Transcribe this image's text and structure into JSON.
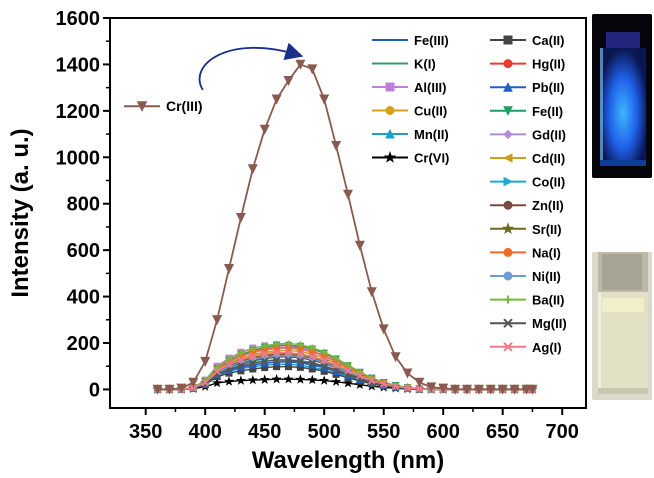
{
  "chart_data": {
    "type": "line",
    "title": "",
    "xlabel": "Wavelength (nm)",
    "ylabel": "Intensity (a. u.)",
    "xlim": [
      320,
      720
    ],
    "ylim": [
      -80,
      1600
    ],
    "xticks": [
      350,
      400,
      450,
      500,
      550,
      600,
      650,
      700
    ],
    "yticks": [
      0,
      200,
      400,
      600,
      800,
      1000,
      1200,
      1400,
      1600
    ],
    "x": [
      360,
      370,
      380,
      390,
      400,
      410,
      420,
      430,
      440,
      450,
      460,
      470,
      480,
      490,
      500,
      510,
      520,
      530,
      540,
      550,
      560,
      570,
      580,
      590,
      600,
      610,
      620,
      630,
      640,
      650,
      660,
      670,
      675
    ],
    "series": [
      {
        "name": "Cr(III)",
        "color": "#8b5a4e",
        "marker": "triangle-down",
        "values": [
          0,
          0,
          5,
          30,
          120,
          300,
          520,
          740,
          950,
          1120,
          1250,
          1330,
          1400,
          1380,
          1250,
          1050,
          840,
          620,
          420,
          260,
          140,
          70,
          30,
          10,
          5,
          0,
          0,
          0,
          0,
          0,
          0,
          0,
          0
        ]
      },
      {
        "name": "Fe(III)",
        "color": "#1f5fa8",
        "marker": "none",
        "values": [
          0,
          0,
          0,
          5,
          20,
          60,
          80,
          95,
          105,
          112,
          118,
          120,
          118,
          110,
          98,
          82,
          64,
          46,
          30,
          18,
          10,
          5,
          2,
          0,
          0,
          0,
          0,
          0,
          0,
          0,
          0,
          0,
          0
        ]
      },
      {
        "name": "K(I)",
        "color": "#2e9c6e",
        "marker": "none",
        "values": [
          0,
          0,
          0,
          5,
          25,
          70,
          95,
          110,
          122,
          132,
          140,
          143,
          140,
          132,
          118,
          98,
          76,
          55,
          36,
          22,
          12,
          6,
          2,
          0,
          0,
          0,
          0,
          0,
          0,
          0,
          0,
          0,
          0
        ]
      },
      {
        "name": "Al(III)",
        "color": "#c07fd6",
        "marker": "square",
        "values": [
          0,
          0,
          0,
          8,
          40,
          100,
          135,
          160,
          178,
          188,
          192,
          190,
          180,
          165,
          145,
          120,
          92,
          66,
          44,
          27,
          15,
          7,
          3,
          0,
          0,
          0,
          0,
          0,
          0,
          0,
          0,
          0,
          0
        ]
      },
      {
        "name": "Cu(II)",
        "color": "#d4a017",
        "marker": "circle",
        "values": [
          0,
          0,
          0,
          6,
          30,
          80,
          110,
          130,
          145,
          155,
          160,
          158,
          152,
          140,
          124,
          102,
          79,
          57,
          38,
          23,
          13,
          6,
          2,
          0,
          0,
          0,
          0,
          0,
          0,
          0,
          0,
          0,
          0
        ]
      },
      {
        "name": "Mn(II)",
        "color": "#1aa0c8",
        "marker": "triangle-up",
        "values": [
          0,
          0,
          0,
          5,
          22,
          60,
          78,
          90,
          98,
          104,
          108,
          108,
          104,
          96,
          84,
          70,
          54,
          39,
          26,
          16,
          9,
          4,
          1,
          0,
          0,
          0,
          0,
          0,
          0,
          0,
          0,
          0,
          0
        ]
      },
      {
        "name": "Cr(VI)",
        "color": "#000000",
        "marker": "star",
        "values": [
          0,
          0,
          0,
          3,
          12,
          28,
          34,
          38,
          40,
          42,
          44,
          44,
          43,
          41,
          38,
          33,
          27,
          20,
          14,
          9,
          5,
          2,
          1,
          0,
          0,
          0,
          0,
          0,
          0,
          0,
          0,
          0,
          0
        ]
      },
      {
        "name": "Ca(II)",
        "color": "#444444",
        "marker": "square",
        "values": [
          0,
          0,
          0,
          4,
          20,
          55,
          70,
          80,
          88,
          94,
          98,
          98,
          95,
          88,
          78,
          65,
          50,
          36,
          24,
          15,
          8,
          4,
          1,
          0,
          0,
          0,
          0,
          0,
          0,
          0,
          0,
          0,
          0
        ]
      },
      {
        "name": "Hg(II)",
        "color": "#e83c2e",
        "marker": "circle",
        "values": [
          0,
          0,
          0,
          6,
          28,
          75,
          105,
          124,
          138,
          148,
          153,
          152,
          146,
          135,
          119,
          98,
          76,
          55,
          36,
          22,
          12,
          6,
          2,
          0,
          0,
          0,
          0,
          0,
          0,
          0,
          0,
          0,
          0
        ]
      },
      {
        "name": "Pb(II)",
        "color": "#1e5fc8",
        "marker": "triangle-up",
        "values": [
          0,
          0,
          0,
          5,
          22,
          62,
          82,
          96,
          106,
          113,
          118,
          118,
          114,
          105,
          93,
          77,
          60,
          43,
          29,
          17,
          9,
          4,
          1,
          0,
          0,
          0,
          0,
          0,
          0,
          0,
          0,
          0,
          0
        ]
      },
      {
        "name": "Fe(II)",
        "color": "#1e9c6a",
        "marker": "triangle-down",
        "values": [
          0,
          0,
          0,
          7,
          34,
          90,
          125,
          150,
          168,
          180,
          188,
          190,
          186,
          174,
          156,
          131,
          102,
          74,
          49,
          30,
          17,
          8,
          3,
          0,
          0,
          0,
          0,
          0,
          0,
          0,
          0,
          0,
          0
        ]
      },
      {
        "name": "Gd(II)",
        "color": "#b78ad8",
        "marker": "diamond",
        "values": [
          0,
          0,
          0,
          7,
          32,
          85,
          118,
          142,
          158,
          170,
          176,
          177,
          172,
          160,
          143,
          120,
          94,
          68,
          45,
          28,
          15,
          7,
          3,
          0,
          0,
          0,
          0,
          0,
          0,
          0,
          0,
          0,
          0
        ]
      },
      {
        "name": "Cd(II)",
        "color": "#c9a017",
        "marker": "triangle-left",
        "values": [
          0,
          0,
          0,
          6,
          30,
          80,
          112,
          134,
          150,
          161,
          167,
          168,
          163,
          152,
          135,
          113,
          88,
          64,
          42,
          26,
          14,
          7,
          2,
          0,
          0,
          0,
          0,
          0,
          0,
          0,
          0,
          0,
          0
        ]
      },
      {
        "name": "Co(II)",
        "color": "#1eaad0",
        "marker": "triangle-right",
        "values": [
          0,
          0,
          0,
          5,
          24,
          65,
          88,
          104,
          115,
          123,
          128,
          128,
          124,
          115,
          102,
          85,
          66,
          48,
          32,
          19,
          10,
          5,
          1,
          0,
          0,
          0,
          0,
          0,
          0,
          0,
          0,
          0,
          0
        ]
      },
      {
        "name": "Zn(II)",
        "color": "#7a4a3f",
        "marker": "circle",
        "values": [
          0,
          0,
          0,
          6,
          26,
          70,
          96,
          114,
          126,
          135,
          140,
          140,
          136,
          126,
          112,
          93,
          72,
          52,
          34,
          21,
          11,
          5,
          2,
          0,
          0,
          0,
          0,
          0,
          0,
          0,
          0,
          0,
          0
        ]
      },
      {
        "name": "Sr(II)",
        "color": "#6b6a1e",
        "marker": "star",
        "values": [
          0,
          0,
          0,
          6,
          28,
          74,
          102,
          121,
          134,
          144,
          149,
          149,
          145,
          134,
          119,
          99,
          77,
          55,
          36,
          22,
          12,
          6,
          2,
          0,
          0,
          0,
          0,
          0,
          0,
          0,
          0,
          0,
          0
        ]
      },
      {
        "name": "Na(I)",
        "color": "#f06b28",
        "marker": "circle",
        "values": [
          0,
          0,
          0,
          7,
          33,
          88,
          122,
          146,
          162,
          174,
          180,
          182,
          177,
          165,
          147,
          123,
          96,
          70,
          46,
          28,
          15,
          7,
          3,
          0,
          0,
          0,
          0,
          0,
          0,
          0,
          0,
          0,
          0
        ]
      },
      {
        "name": "Ni(II)",
        "color": "#6e9ad6",
        "marker": "circle",
        "values": [
          0,
          0,
          0,
          6,
          27,
          72,
          98,
          117,
          130,
          139,
          144,
          145,
          141,
          131,
          116,
          96,
          75,
          54,
          35,
          21,
          12,
          5,
          2,
          0,
          0,
          0,
          0,
          0,
          0,
          0,
          0,
          0,
          0
        ]
      },
      {
        "name": "Ba(II)",
        "color": "#7ab83a",
        "marker": "plus",
        "values": [
          0,
          0,
          0,
          8,
          36,
          95,
          132,
          158,
          176,
          188,
          196,
          198,
          193,
          180,
          161,
          135,
          105,
          76,
          50,
          31,
          17,
          8,
          3,
          0,
          0,
          0,
          0,
          0,
          0,
          0,
          0,
          0,
          0
        ]
      },
      {
        "name": "Mg(II)",
        "color": "#555555",
        "marker": "x",
        "values": [
          0,
          0,
          0,
          5,
          24,
          64,
          86,
          102,
          113,
          121,
          126,
          126,
          122,
          113,
          100,
          83,
          64,
          46,
          30,
          18,
          10,
          4,
          1,
          0,
          0,
          0,
          0,
          0,
          0,
          0,
          0,
          0,
          0
        ]
      },
      {
        "name": "Ag(I)",
        "color": "#f07a8a",
        "marker": "x",
        "values": [
          0,
          0,
          0,
          6,
          29,
          78,
          108,
          128,
          142,
          152,
          158,
          158,
          153,
          142,
          126,
          105,
          81,
          59,
          38,
          23,
          13,
          6,
          2,
          0,
          0,
          0,
          0,
          0,
          0,
          0,
          0,
          0,
          0
        ]
      }
    ],
    "annotations": [
      {
        "text": "Cr(III)",
        "target": "peak of Cr(III) at 480 nm",
        "style": "curved arrow"
      }
    ],
    "legend": {
      "column1": [
        "Fe(III)",
        "K(I)",
        "Al(III)",
        "Cu(II)",
        "Mn(II)",
        "Cr(VI)"
      ],
      "column2": [
        "Ca(II)",
        "Hg(II)",
        "Pb(II)",
        "Fe(II)",
        "Gd(II)",
        "Cd(II)",
        "Co(II)",
        "Zn(II)",
        "Sr(II)",
        "Na(I)",
        "Ni(II)",
        "Ba(II)",
        "Mg(II)",
        "Ag(I)"
      ],
      "placement": "top-right"
    },
    "insets": [
      "vial-under-uv",
      "vial-under-daylight"
    ],
    "grid": false
  }
}
